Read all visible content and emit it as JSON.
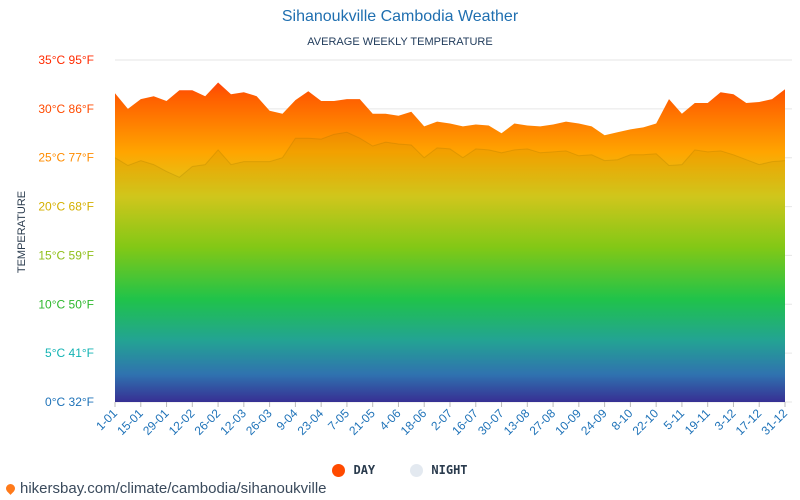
{
  "header": {
    "title": "Sihanoukville Cambodia Weather",
    "subtitle": "AVERAGE WEEKLY TEMPERATURE"
  },
  "legend": {
    "day_label": "DAY",
    "night_label": "NIGHT",
    "day_color": "#ff4a00",
    "night_color": "#e3e9f0"
  },
  "footer": {
    "source": "hikersbay.com/climate/cambodia/sihanoukville"
  },
  "chart_data": {
    "type": "area",
    "title": "Sihanoukville Cambodia Weather",
    "subtitle": "AVERAGE WEEKLY TEMPERATURE",
    "ylabel": "TEMPERATURE",
    "ylim": [
      0,
      35
    ],
    "grid": true,
    "legend_position": "bottom",
    "y_ticks": [
      {
        "value": 0,
        "label": "0°C 32°F",
        "color": "#1e72b8"
      },
      {
        "value": 5,
        "label": "5°C 41°F",
        "color": "#13b3b3"
      },
      {
        "value": 10,
        "label": "10°C 50°F",
        "color": "#2db82d"
      },
      {
        "value": 15,
        "label": "15°C 59°F",
        "color": "#8fbf1a"
      },
      {
        "value": 20,
        "label": "20°C 68°F",
        "color": "#d4b000"
      },
      {
        "value": 25,
        "label": "25°C 77°F",
        "color": "#ff8c00"
      },
      {
        "value": 30,
        "label": "30°C 86°F",
        "color": "#ff4a00"
      },
      {
        "value": 35,
        "label": "35°C 95°F",
        "color": "#ff2a00"
      }
    ],
    "x_tick_labels": [
      "1-01",
      "15-01",
      "29-01",
      "12-02",
      "26-02",
      "12-03",
      "26-03",
      "9-04",
      "23-04",
      "7-05",
      "21-05",
      "4-06",
      "18-06",
      "2-07",
      "16-07",
      "30-07",
      "13-08",
      "27-08",
      "10-09",
      "24-09",
      "8-10",
      "22-10",
      "5-11",
      "19-11",
      "3-12",
      "17-12",
      "31-12"
    ],
    "series": [
      {
        "name": "DAY",
        "values": [
          31.6,
          30.0,
          31.0,
          31.3,
          30.8,
          31.9,
          31.9,
          31.3,
          32.7,
          31.5,
          31.7,
          31.3,
          29.8,
          29.5,
          30.9,
          31.8,
          30.8,
          30.8,
          31.0,
          31.0,
          29.5,
          29.5,
          29.3,
          29.7,
          28.2,
          28.7,
          28.5,
          28.2,
          28.4,
          28.3,
          27.5,
          28.5,
          28.3,
          28.2,
          28.4,
          28.7,
          28.5,
          28.2,
          27.3,
          27.6,
          27.9,
          28.1,
          28.5,
          31.0,
          29.5,
          30.6,
          30.6,
          31.7,
          31.5,
          30.6,
          30.7,
          31.0,
          32.0
        ]
      },
      {
        "name": "NIGHT",
        "values": [
          25.0,
          24.2,
          24.7,
          24.3,
          23.6,
          23.0,
          24.1,
          24.3,
          25.8,
          24.3,
          24.6,
          24.6,
          24.6,
          25.0,
          27.0,
          27.0,
          26.9,
          27.4,
          27.6,
          27.0,
          26.2,
          26.6,
          26.4,
          26.3,
          25.0,
          26.0,
          25.9,
          25.0,
          25.9,
          25.8,
          25.5,
          25.8,
          25.9,
          25.5,
          25.6,
          25.7,
          25.2,
          25.3,
          24.7,
          24.8,
          25.3,
          25.3,
          25.4,
          24.2,
          24.3,
          25.8,
          25.6,
          25.7,
          25.3,
          24.8,
          24.3,
          24.6,
          24.7
        ]
      }
    ]
  }
}
